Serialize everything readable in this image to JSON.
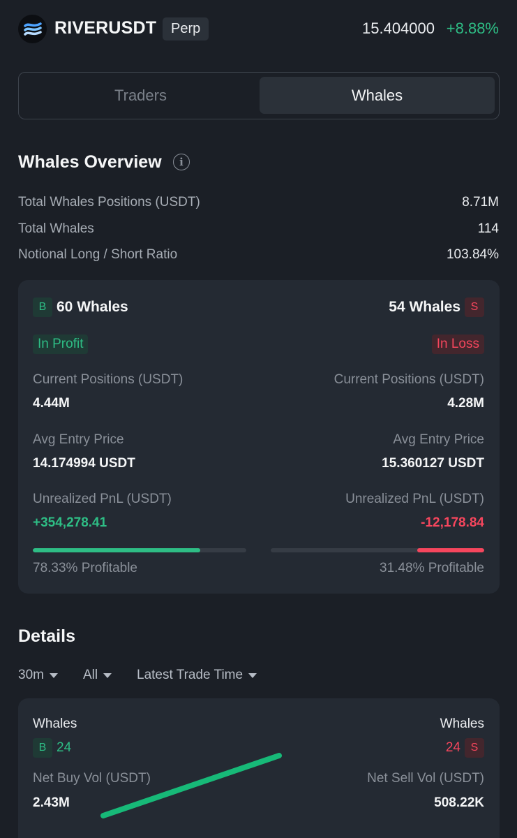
{
  "header": {
    "symbol": "RIVERUSDT",
    "contract_type": "Perp",
    "price": "15.404000",
    "change": "+8.88%",
    "logo_icon": "river-logo-icon"
  },
  "tabs": [
    {
      "label": "Traders",
      "active": false
    },
    {
      "label": "Whales",
      "active": true
    }
  ],
  "overview": {
    "title": "Whales Overview",
    "stats": [
      {
        "label": "Total Whales Positions (USDT)",
        "value": "8.71M"
      },
      {
        "label": "Total Whales",
        "value": "114"
      },
      {
        "label": "Notional Long / Short Ratio",
        "value": "103.84%"
      }
    ]
  },
  "long_side": {
    "badge": "B",
    "count": "60 Whales",
    "status": "In Profit",
    "positions_label": "Current Positions (USDT)",
    "positions_value": "4.44M",
    "entry_label": "Avg Entry Price",
    "entry_value": "14.174994 USDT",
    "pnl_label": "Unrealized PnL (USDT)",
    "pnl_value": "+354,278.41",
    "profitable_pct": 78.33,
    "profitable_text": "78.33% Profitable"
  },
  "short_side": {
    "badge": "S",
    "count": "54 Whales",
    "status": "In Loss",
    "positions_label": "Current Positions (USDT)",
    "positions_value": "4.28M",
    "entry_label": "Avg Entry Price",
    "entry_value": "15.360127 USDT",
    "pnl_label": "Unrealized PnL (USDT)",
    "pnl_value": "-12,178.84",
    "profitable_pct": 31.48,
    "profitable_text": "31.48% Profitable"
  },
  "details": {
    "title": "Details",
    "filters": [
      {
        "label": "30m"
      },
      {
        "label": "All"
      },
      {
        "label": "Latest Trade Time"
      }
    ],
    "buy": {
      "whales_label": "Whales",
      "badge": "B",
      "count": "24",
      "vol_label": "Net Buy Vol (USDT)",
      "vol_value": "2.43M"
    },
    "sell": {
      "whales_label": "Whales",
      "badge": "S",
      "count": "24",
      "vol_label": "Net Sell Vol (USDT)",
      "vol_value": "508.22K"
    }
  },
  "colors": {
    "up": "#2ebd85",
    "down": "#f6465d",
    "background": "#1b1f26",
    "card": "#242a33"
  }
}
